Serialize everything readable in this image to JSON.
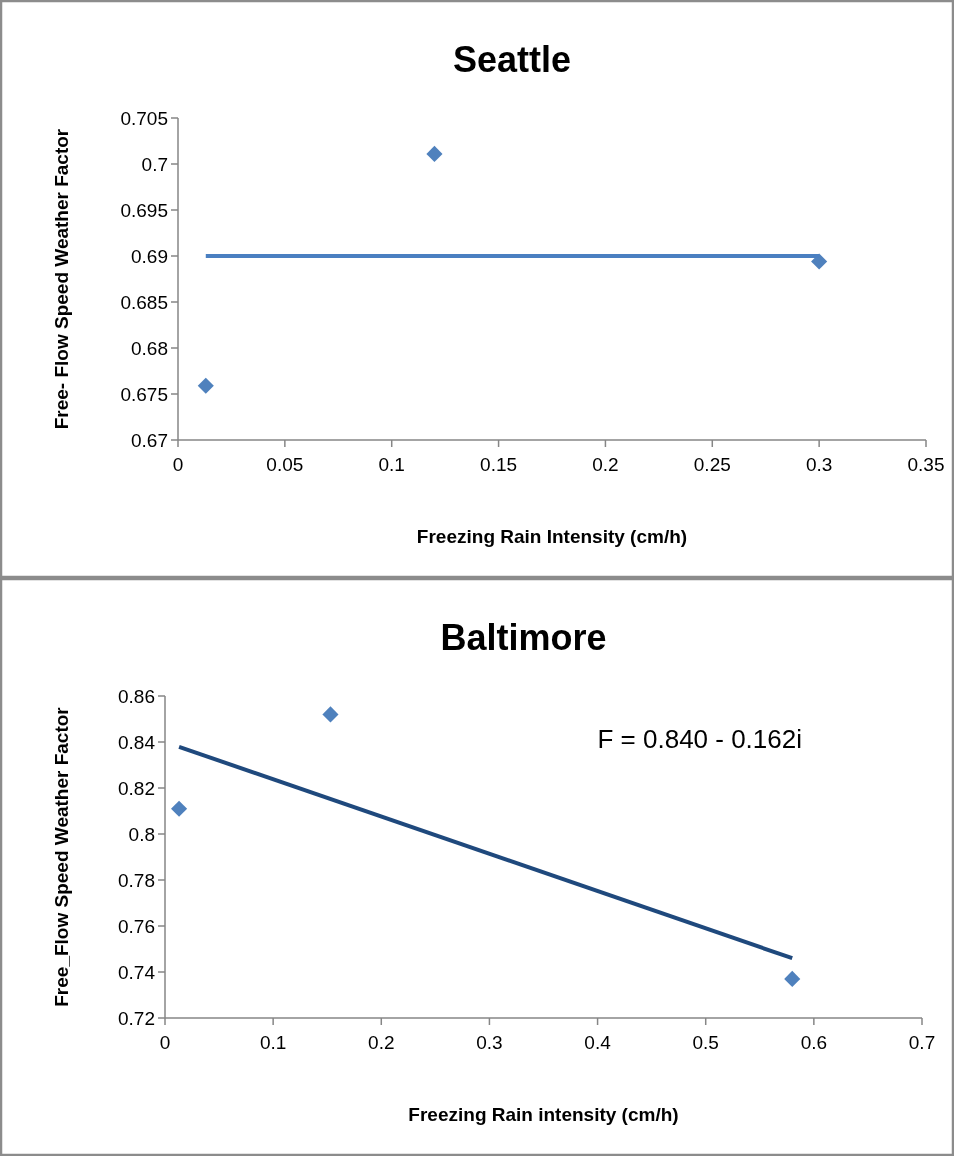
{
  "chart_data": [
    {
      "type": "scatter",
      "title": "Seattle",
      "xlabel": "Freezing Rain Intensity (cm/h)",
      "ylabel": "Free- Flow Speed Weather Factor",
      "marker": "diamond",
      "grid": false,
      "xlim": [
        0,
        0.35
      ],
      "xticks": [
        0,
        0.05,
        0.1,
        0.15,
        0.2,
        0.25,
        0.3,
        0.35
      ],
      "ylim": [
        0.67,
        0.705
      ],
      "yticks": [
        0.67,
        0.675,
        0.68,
        0.685,
        0.69,
        0.695,
        0.7,
        0.705
      ],
      "series": [
        {
          "color": "#4f81bd",
          "x": [
            0.013,
            0.12,
            0.3
          ],
          "values": [
            0.6759,
            0.7011,
            0.6894
          ]
        },
        {
          "type": "line",
          "color": "#4a7fc1",
          "marker": "none",
          "line_style": "solid",
          "x": [
            0.013,
            0.3
          ],
          "values": [
            0.69,
            0.69
          ]
        }
      ]
    },
    {
      "type": "scatter",
      "title": "Baltimore",
      "xlabel": "Freezing Rain intensity (cm/h)",
      "ylabel": "Free_Flow Speed Weather Factor",
      "marker": "diamond",
      "grid": false,
      "xlim": [
        0,
        0.7
      ],
      "xticks": [
        0,
        0.1,
        0.2,
        0.3,
        0.4,
        0.5,
        0.6,
        0.7
      ],
      "ylim": [
        0.72,
        0.86
      ],
      "yticks": [
        0.72,
        0.74,
        0.76,
        0.78,
        0.8,
        0.82,
        0.84,
        0.86
      ],
      "annotations": [
        "F = 0.840 -  0.162i"
      ],
      "series": [
        {
          "color": "#4f81bd",
          "x": [
            0.013,
            0.153,
            0.58
          ],
          "values": [
            0.811,
            0.852,
            0.737
          ]
        },
        {
          "type": "line",
          "color": "#1f497d",
          "marker": "none",
          "line_style": "solid",
          "x": [
            0.013,
            0.58
          ],
          "values": [
            0.8379,
            0.746
          ]
        }
      ]
    }
  ]
}
